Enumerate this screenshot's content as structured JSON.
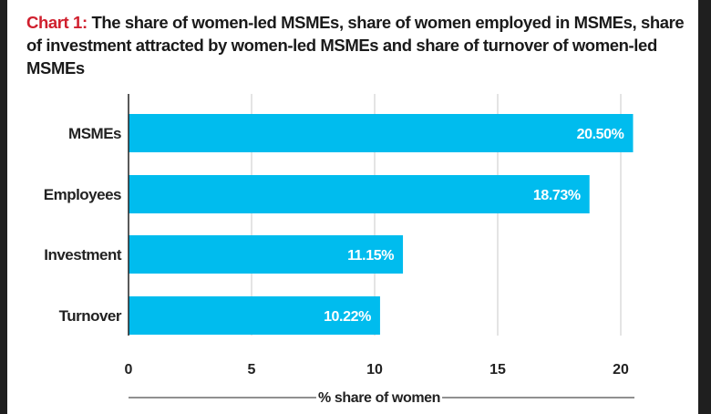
{
  "title": {
    "prefix": "Chart 1:",
    "text": "The share of women-led MSMEs, share of women employed in MSMEs, share of investment attracted by women-led MSMEs and share of turnover of women-led MSMEs"
  },
  "colors": {
    "bar": "#00bcee",
    "title_prefix": "#d0202e",
    "grid": "#c8c8c8",
    "axis": "#222222"
  },
  "chart_data": {
    "type": "bar",
    "orientation": "horizontal",
    "categories": [
      "MSMEs",
      "Employees",
      "Investment",
      "Turnover"
    ],
    "values": [
      20.5,
      18.73,
      11.15,
      10.22
    ],
    "value_labels": [
      "20.50%",
      "18.73%",
      "11.15%",
      "10.22%"
    ],
    "xlabel": "% share of women",
    "xlim": [
      0,
      20
    ],
    "xticks": [
      0,
      5,
      10,
      15,
      20
    ],
    "grid": true
  }
}
